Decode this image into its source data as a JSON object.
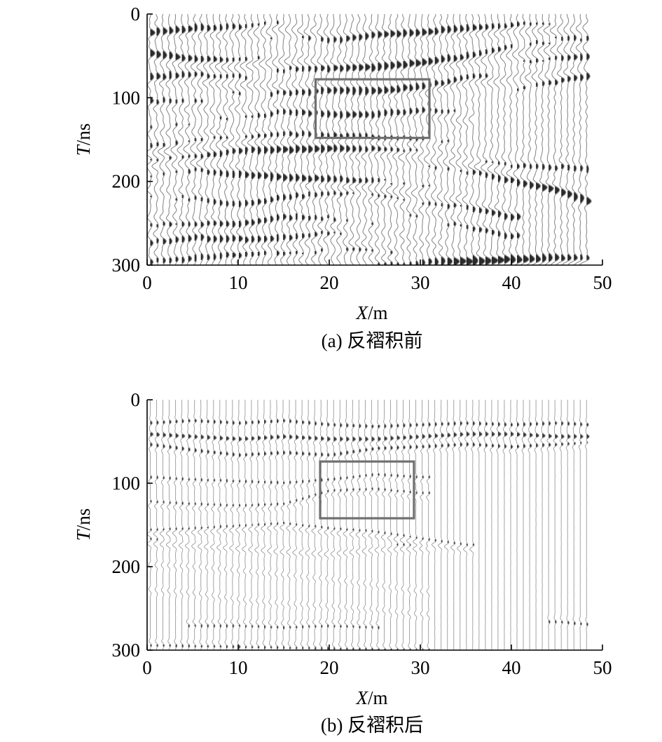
{
  "chart_data": [
    {
      "type": "heatmap",
      "title": "(a) 反褶积前",
      "xlabel": {
        "var": "X",
        "unit": "/m"
      },
      "ylabel": {
        "var": "T",
        "unit": "/ns"
      },
      "xlim": [
        0,
        50
      ],
      "ylim": [
        0,
        300
      ],
      "y_inverted": true,
      "xticks": [
        0,
        10,
        20,
        30,
        40,
        50
      ],
      "yticks": [
        0,
        100,
        200,
        300
      ],
      "trace_count": 70,
      "trace_style": "dense wiggle traces, strong dark reflections",
      "reflectors": [
        {
          "x": [
            0,
            5,
            10,
            15,
            20,
            25,
            30,
            35,
            40,
            45,
            48.5
          ],
          "t": [
            22,
            20,
            22,
            18,
            25,
            22,
            22,
            20,
            20,
            20,
            20
          ],
          "strength": 0.9
        },
        {
          "x": [
            0,
            5,
            10,
            15,
            20,
            25,
            30,
            35,
            40,
            45,
            48.5
          ],
          "t": [
            48,
            58,
            62,
            58,
            60,
            62,
            60,
            55,
            48,
            45,
            45
          ],
          "strength": 1.0
        },
        {
          "x": [
            0,
            5,
            10,
            15,
            20,
            25,
            30,
            35,
            40,
            45,
            48.5
          ],
          "t": [
            78,
            78,
            85,
            88,
            88,
            92,
            90,
            82,
            80,
            75,
            70
          ],
          "strength": 0.9
        },
        {
          "x": [
            0,
            5,
            10,
            15,
            20,
            25,
            30,
            35
          ],
          "t": [
            108,
            112,
            115,
            112,
            118,
            122,
            120,
            125
          ],
          "strength": 0.75
        },
        {
          "x": [
            0,
            5,
            10,
            15,
            20,
            25,
            30,
            35,
            40,
            45,
            48.5
          ],
          "t": [
            140,
            140,
            142,
            140,
            145,
            150,
            155,
            165,
            175,
            180,
            185
          ],
          "strength": 0.6
        },
        {
          "x": [
            0,
            5,
            10,
            15,
            20,
            25,
            30,
            35,
            40,
            45,
            48.5
          ],
          "t": [
            165,
            162,
            158,
            160,
            162,
            165,
            170,
            180,
            195,
            210,
            225
          ],
          "strength": 1.0
        },
        {
          "x": [
            0,
            5,
            10,
            15,
            20,
            25,
            30,
            35,
            40
          ],
          "t": [
            182,
            180,
            188,
            195,
            200,
            205,
            215,
            225,
            240
          ],
          "strength": 0.85
        },
        {
          "x": [
            0,
            5,
            10,
            15,
            20,
            25,
            30,
            35,
            40
          ],
          "t": [
            210,
            215,
            225,
            220,
            218,
            222,
            235,
            250,
            265
          ],
          "strength": 0.6
        },
        {
          "x": [
            0,
            5,
            10,
            15,
            20,
            25,
            30,
            35
          ],
          "t": [
            245,
            248,
            250,
            245,
            250,
            260,
            270,
            285
          ],
          "strength": 0.65
        },
        {
          "x": [
            0,
            5,
            10,
            15,
            20,
            25,
            30,
            35,
            40,
            48.5
          ],
          "t": [
            268,
            265,
            270,
            272,
            268,
            275,
            285,
            295,
            295,
            298
          ],
          "strength": 0.75
        },
        {
          "x": [
            0,
            10,
            20,
            30,
            40,
            48.5
          ],
          "t": [
            292,
            290,
            292,
            295,
            296,
            298
          ],
          "strength": 0.6
        }
      ],
      "highlight_box": {
        "x": [
          18.5,
          31
        ],
        "t": [
          78,
          148
        ]
      }
    },
    {
      "type": "heatmap",
      "title": "(b) 反褶积后",
      "xlabel": {
        "var": "X",
        "unit": "/m"
      },
      "ylabel": {
        "var": "T",
        "unit": "/ns"
      },
      "xlim": [
        0,
        50
      ],
      "ylim": [
        0,
        300
      ],
      "y_inverted": true,
      "xticks": [
        0,
        10,
        20,
        30,
        40,
        50
      ],
      "yticks": [
        0,
        100,
        200,
        300
      ],
      "trace_count": 70,
      "trace_style": "sparse wiggle traces, thin sharp reflections",
      "reflectors": [
        {
          "x": [
            0,
            5,
            10,
            15,
            20,
            25,
            30,
            35,
            40,
            45,
            48.5
          ],
          "t": [
            28,
            25,
            28,
            25,
            30,
            32,
            30,
            28,
            30,
            28,
            30
          ],
          "strength": 0.6
        },
        {
          "x": [
            0,
            5,
            10,
            15,
            20,
            25,
            30,
            35,
            40,
            45,
            48.5
          ],
          "t": [
            42,
            45,
            48,
            45,
            48,
            48,
            45,
            42,
            42,
            45,
            45
          ],
          "strength": 0.9
        },
        {
          "x": [
            0,
            5,
            10,
            15,
            20,
            25,
            30,
            35,
            40,
            45,
            48.5
          ],
          "t": [
            55,
            62,
            68,
            65,
            68,
            60,
            58,
            55,
            58,
            55,
            52
          ],
          "strength": 0.7
        },
        {
          "x": [
            0,
            5,
            10,
            15,
            20,
            25,
            30
          ],
          "t": [
            95,
            98,
            100,
            102,
            98,
            92,
            95
          ],
          "strength": 0.6
        },
        {
          "x": [
            0,
            5,
            10,
            15,
            20,
            25,
            30
          ],
          "t": [
            125,
            128,
            130,
            128,
            112,
            110,
            115
          ],
          "strength": 0.7
        },
        {
          "x": [
            0,
            5,
            10,
            15,
            20,
            25,
            30,
            35
          ],
          "t": [
            160,
            158,
            155,
            152,
            158,
            162,
            170,
            178
          ],
          "strength": 0.9
        },
        {
          "x": [
            0,
            5,
            10,
            15,
            20,
            25,
            30
          ],
          "t": [
            172,
            175,
            178,
            182,
            185,
            180,
            178
          ],
          "strength": 0.85
        },
        {
          "x": [
            0,
            5,
            10,
            15,
            20,
            25,
            30
          ],
          "t": [
            198,
            200,
            205,
            210,
            215,
            222,
            230
          ],
          "strength": 0.5
        },
        {
          "x": [
            0,
            5,
            10,
            15,
            20,
            25,
            30
          ],
          "t": [
            228,
            232,
            240,
            245,
            248,
            252,
            258
          ],
          "strength": 0.5
        },
        {
          "x": [
            5,
            10,
            15,
            20,
            25
          ],
          "t": [
            268,
            268,
            270,
            268,
            270
          ],
          "strength": 0.65
        },
        {
          "x": [
            0,
            10,
            20,
            30
          ],
          "t": [
            292,
            294,
            296,
            298
          ],
          "strength": 0.55
        },
        {
          "x": [
            45,
            48.5
          ],
          "t": [
            265,
            268
          ],
          "strength": 0.5
        }
      ],
      "highlight_box": {
        "x": [
          19,
          29.3
        ],
        "t": [
          74,
          142
        ]
      }
    }
  ]
}
